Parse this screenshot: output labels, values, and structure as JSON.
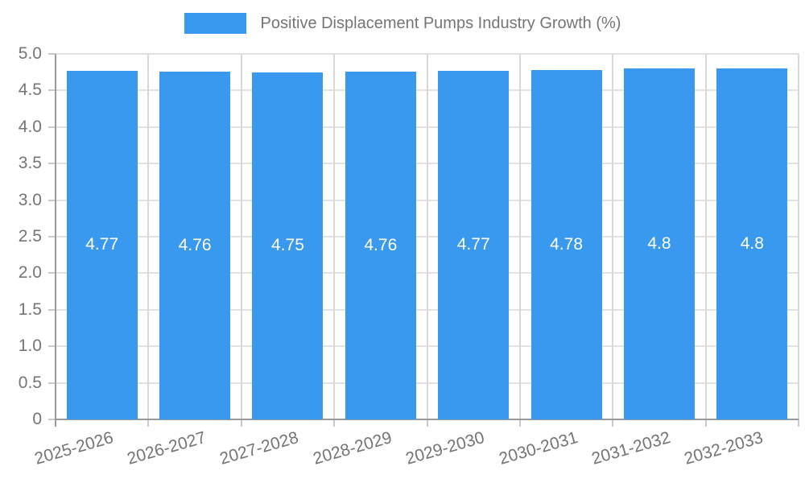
{
  "legend": {
    "label": "Positive Displacement Pumps Industry Growth (%)"
  },
  "chart_data": {
    "type": "bar",
    "title": "Positive Displacement Pumps Industry Growth (%)",
    "categories": [
      "2025-2026",
      "2026-2027",
      "2027-2028",
      "2028-2029",
      "2029-2030",
      "2030-2031",
      "2031-2032",
      "2032-2033"
    ],
    "values": [
      4.77,
      4.76,
      4.75,
      4.76,
      4.77,
      4.78,
      4.8,
      4.8
    ],
    "value_labels": [
      "4.77",
      "4.76",
      "4.75",
      "4.76",
      "4.77",
      "4.78",
      "4.8",
      "4.8"
    ],
    "xlabel": "",
    "ylabel": "",
    "ylim": [
      0,
      5
    ],
    "ytick_labels": [
      "0",
      "0.5",
      "1.0",
      "1.5",
      "2.0",
      "2.5",
      "3.0",
      "3.5",
      "4.0",
      "4.5",
      "5.0"
    ],
    "grid": "horizontal-and-vertical",
    "legend_position": "top-center",
    "colors": {
      "bar": "#3999EE",
      "bar_value_label": "#FFFFFF",
      "axis_line": "#999999",
      "gridline_h": "#E2E2E2",
      "gridline_v": "#D8D8D8",
      "tick_mark": "#C9C9C9",
      "tick_label": "#757575",
      "legend_label": "#757575",
      "background": "#FFFFFF"
    }
  }
}
